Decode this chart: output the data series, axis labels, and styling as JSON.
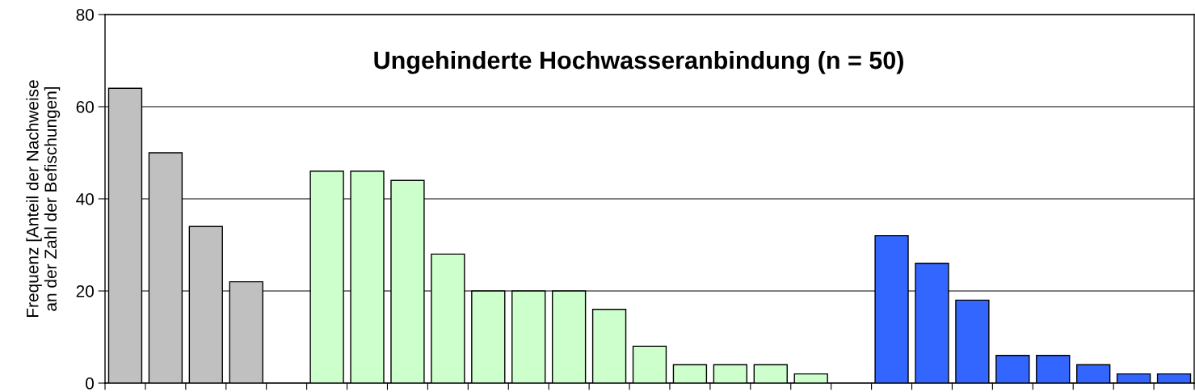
{
  "chart_data": {
    "type": "bar",
    "title": "Ungehinderte Hochwasseranbindung (n = 50)",
    "ylabel": "Frequenz [Anteil der Nachweise\nan der Zahl der Befischungen]",
    "categories": [
      null,
      null,
      null,
      null,
      null,
      null,
      null,
      null,
      null,
      null,
      null,
      null,
      null,
      null,
      null,
      null,
      null,
      null,
      null,
      null,
      null,
      null,
      null,
      null,
      null,
      null,
      null
    ],
    "values": [
      64,
      50,
      34,
      22,
      null,
      46,
      46,
      44,
      28,
      20,
      20,
      20,
      16,
      8,
      4,
      4,
      4,
      2,
      null,
      32,
      26,
      18,
      6,
      6,
      4,
      2,
      2
    ],
    "colors": [
      "#c0c0c0",
      "#c0c0c0",
      "#c0c0c0",
      "#c0c0c0",
      null,
      "#ccffcc",
      "#ccffcc",
      "#ccffcc",
      "#ccffcc",
      "#ccffcc",
      "#ccffcc",
      "#ccffcc",
      "#ccffcc",
      "#ccffcc",
      "#ccffcc",
      "#ccffcc",
      "#ccffcc",
      "#ccffcc",
      null,
      "#3366ff",
      "#3366ff",
      "#3366ff",
      "#3366ff",
      "#3366ff",
      "#3366ff",
      "#3366ff",
      "#3366ff"
    ],
    "ylim": [
      0,
      80
    ],
    "yticks": [
      0,
      20,
      40,
      60,
      80
    ],
    "grid": "y",
    "tick_labels": "y"
  }
}
